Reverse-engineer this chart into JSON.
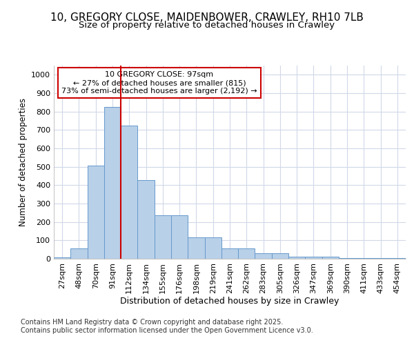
{
  "title": "10, GREGORY CLOSE, MAIDENBOWER, CRAWLEY, RH10 7LB",
  "subtitle": "Size of property relative to detached houses in Crawley",
  "xlabel": "Distribution of detached houses by size in Crawley",
  "ylabel": "Number of detached properties",
  "categories": [
    "27sqm",
    "48sqm",
    "70sqm",
    "91sqm",
    "112sqm",
    "134sqm",
    "155sqm",
    "176sqm",
    "198sqm",
    "219sqm",
    "241sqm",
    "262sqm",
    "283sqm",
    "305sqm",
    "326sqm",
    "347sqm",
    "369sqm",
    "390sqm",
    "411sqm",
    "433sqm",
    "454sqm"
  ],
  "values": [
    8,
    57,
    505,
    825,
    725,
    428,
    238,
    238,
    118,
    118,
    55,
    55,
    30,
    30,
    12,
    12,
    12,
    5,
    3,
    3,
    2
  ],
  "bar_color": "#b8d0e8",
  "bar_edge_color": "#6699cc",
  "vline_x_index": 3.5,
  "vline_color": "#cc0000",
  "annotation_text": "10 GREGORY CLOSE: 97sqm\n← 27% of detached houses are smaller (815)\n73% of semi-detached houses are larger (2,192) →",
  "annotation_box_color": "#cc0000",
  "ylim": [
    0,
    1050
  ],
  "yticks": [
    0,
    100,
    200,
    300,
    400,
    500,
    600,
    700,
    800,
    900,
    1000
  ],
  "background_color": "#ffffff",
  "plot_bg_color": "#ffffff",
  "grid_color": "#d0d8e8",
  "footer_text": "Contains HM Land Registry data © Crown copyright and database right 2025.\nContains public sector information licensed under the Open Government Licence v3.0.",
  "title_fontsize": 11,
  "subtitle_fontsize": 9.5,
  "xlabel_fontsize": 9,
  "ylabel_fontsize": 8.5,
  "tick_fontsize": 8,
  "footer_fontsize": 7,
  "annot_fontsize": 8
}
